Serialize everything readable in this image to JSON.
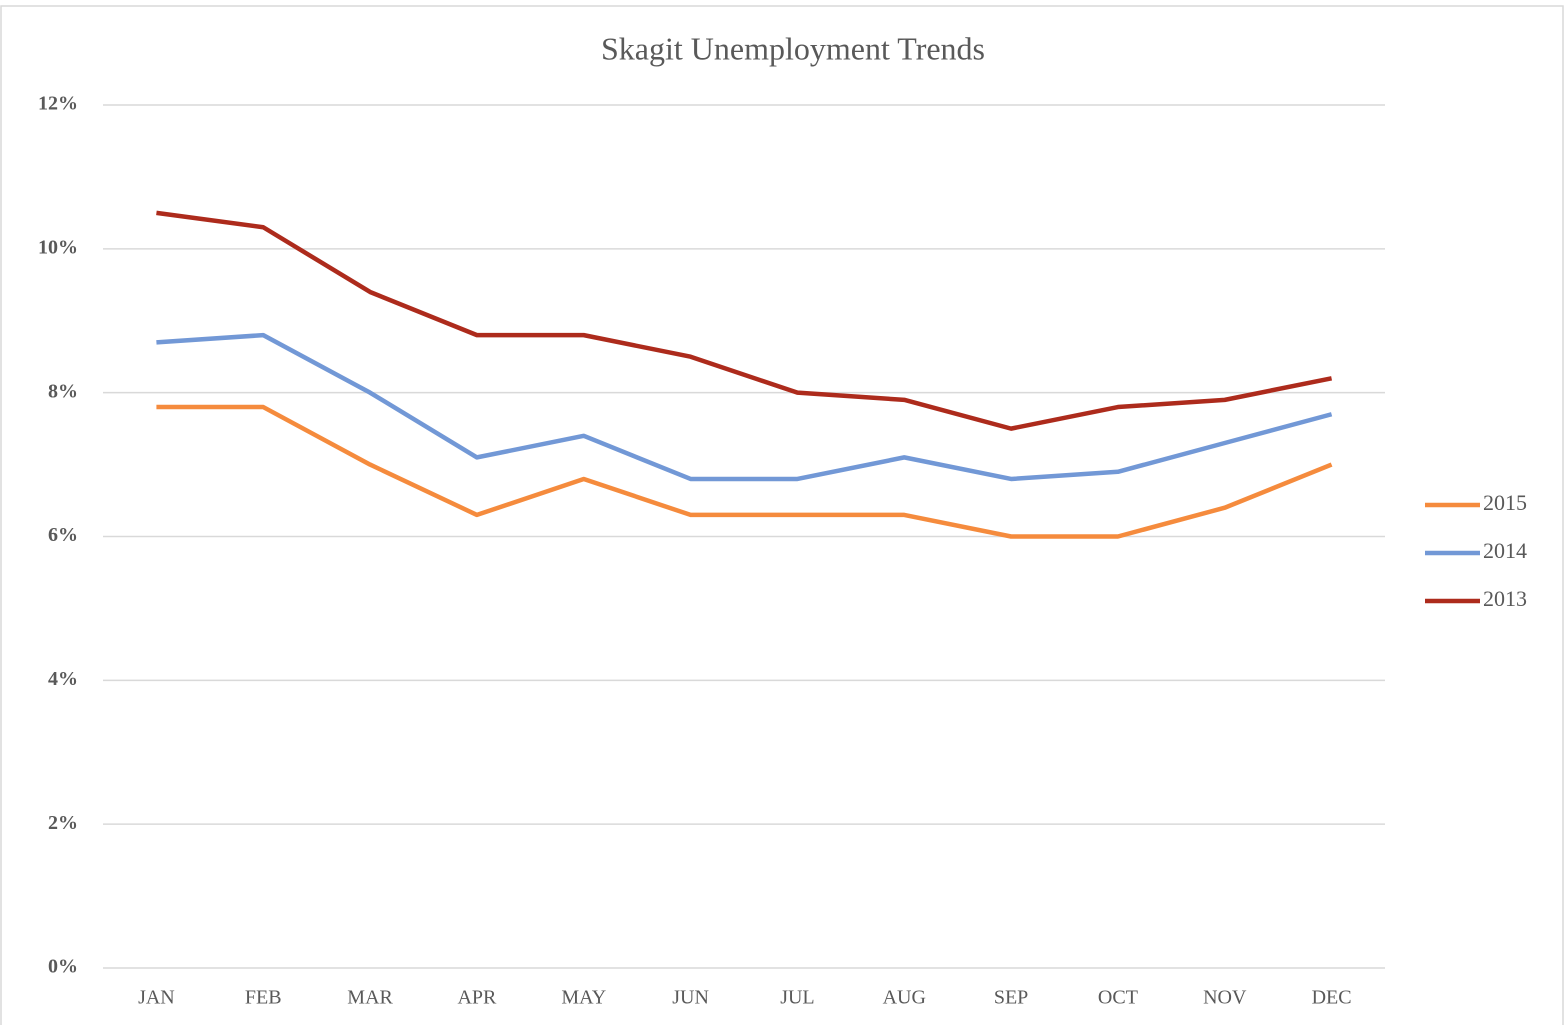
{
  "chart_data": {
    "type": "line",
    "title": "Skagit Unemployment Trends",
    "categories": [
      "JAN",
      "FEB",
      "MAR",
      "APR",
      "MAY",
      "JUN",
      "JUL",
      "AUG",
      "SEP",
      "OCT",
      "NOV",
      "DEC"
    ],
    "series": [
      {
        "name": "2015",
        "color": "#f58b3d",
        "values": [
          7.8,
          7.8,
          7.0,
          6.3,
          6.8,
          6.3,
          6.3,
          6.3,
          6.0,
          6.0,
          6.4,
          7.0
        ]
      },
      {
        "name": "2014",
        "color": "#7298d6",
        "values": [
          8.7,
          8.8,
          8.0,
          7.1,
          7.4,
          6.8,
          6.8,
          7.1,
          6.8,
          6.9,
          7.3,
          7.7
        ]
      },
      {
        "name": "2013",
        "color": "#ad2b1c",
        "values": [
          10.5,
          10.3,
          9.4,
          8.8,
          8.8,
          8.5,
          8.0,
          7.9,
          7.5,
          7.8,
          7.9,
          8.2
        ]
      }
    ],
    "ylim": [
      0,
      12
    ],
    "yticks": [
      {
        "value": 0,
        "label": "0%"
      },
      {
        "value": 2,
        "label": "2%"
      },
      {
        "value": 4,
        "label": "4%"
      },
      {
        "value": 6,
        "label": "6%"
      },
      {
        "value": 8,
        "label": "8%"
      },
      {
        "value": 10,
        "label": "10%"
      },
      {
        "value": 12,
        "label": "12%"
      }
    ],
    "grid": true,
    "legend": "right"
  }
}
